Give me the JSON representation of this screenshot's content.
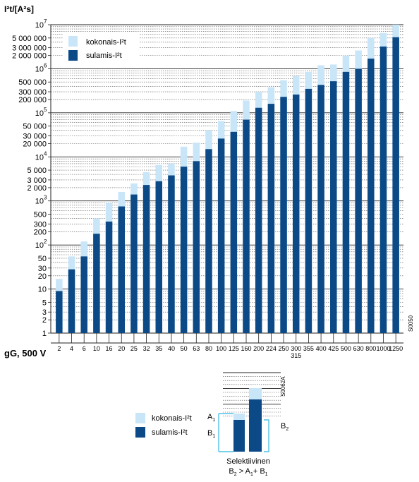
{
  "chart_data": {
    "type": "bar",
    "title": "",
    "ylabel": "I²t/[A²s]",
    "xlabel": "gG, 500 V",
    "y_scale": "log",
    "ylim": [
      1,
      10000000
    ],
    "y_ticks": [
      {
        "v": 1,
        "label": "1"
      },
      {
        "v": 2,
        "label": "2"
      },
      {
        "v": 3,
        "label": "3"
      },
      {
        "v": 5,
        "label": "5"
      },
      {
        "v": 10,
        "label": "10"
      },
      {
        "v": 20,
        "label": "20"
      },
      {
        "v": 30,
        "label": "30"
      },
      {
        "v": 50,
        "label": "50"
      },
      {
        "v": 100,
        "label": "10",
        "sup": "2"
      },
      {
        "v": 200,
        "label": "200"
      },
      {
        "v": 300,
        "label": "300"
      },
      {
        "v": 500,
        "label": "500"
      },
      {
        "v": 1000,
        "label": "10",
        "sup": "3"
      },
      {
        "v": 2000,
        "label": "2 000"
      },
      {
        "v": 3000,
        "label": "3 000"
      },
      {
        "v": 5000,
        "label": "5 000"
      },
      {
        "v": 10000,
        "label": "10",
        "sup": "4"
      },
      {
        "v": 20000,
        "label": "20 000"
      },
      {
        "v": 30000,
        "label": "30 000"
      },
      {
        "v": 50000,
        "label": "50 000"
      },
      {
        "v": 100000,
        "label": "10",
        "sup": "5"
      },
      {
        "v": 200000,
        "label": "200 000"
      },
      {
        "v": 300000,
        "label": "300 000"
      },
      {
        "v": 500000,
        "label": "500 000"
      },
      {
        "v": 1000000,
        "label": "10",
        "sup": "6"
      },
      {
        "v": 2000000,
        "label": "2 000 000"
      },
      {
        "v": 3000000,
        "label": "3 000 000"
      },
      {
        "v": 5000000,
        "label": "5 000 000"
      },
      {
        "v": 10000000,
        "label": "10",
        "sup": "7"
      }
    ],
    "categories": [
      "2",
      "4",
      "6",
      "10",
      "16",
      "20",
      "25",
      "32",
      "35",
      "40",
      "50",
      "63",
      "80",
      "100",
      "125",
      "160",
      "200",
      "224",
      "250",
      "300",
      "355",
      "400",
      "425",
      "500",
      "630",
      "800",
      "1000",
      "1250"
    ],
    "category_sublabels": {
      "300": "315"
    },
    "series": [
      {
        "name": "kokonais-I²t",
        "color": "#c9e6f8",
        "values": [
          17,
          55,
          120,
          400,
          900,
          1600,
          2500,
          4500,
          6500,
          7000,
          17000,
          21000,
          40000,
          65000,
          110000,
          190000,
          300000,
          380000,
          550000,
          680000,
          850000,
          1200000,
          1250000,
          2000000,
          2600000,
          5000000,
          6500000,
          10000000
        ]
      },
      {
        "name": "sulamis-I²t",
        "color": "#0b4a86",
        "values": [
          9,
          28,
          55,
          180,
          340,
          750,
          1400,
          2300,
          2800,
          3800,
          6000,
          8000,
          15000,
          26000,
          37000,
          70000,
          130000,
          160000,
          230000,
          260000,
          350000,
          430000,
          520000,
          850000,
          1000000,
          1700000,
          3200000,
          5200000
        ]
      }
    ],
    "legend_position": "top-left",
    "grid": true,
    "side_code": "S0050"
  },
  "diagram": {
    "code": "S0062A",
    "legend": [
      {
        "name": "kokonais-I²t",
        "color": "#c9e6f8"
      },
      {
        "name": "sulamis-I²t",
        "color": "#0b4a86"
      }
    ],
    "label_a1": "A",
    "label_a1_sub": "1",
    "label_b1": "B",
    "label_b1_sub": "1",
    "label_b2": "B",
    "label_b2_sub": "2",
    "caption": "Selektiivinen",
    "formula_parts": [
      "B",
      "2",
      " > A",
      "1",
      "+ B",
      "1"
    ]
  }
}
